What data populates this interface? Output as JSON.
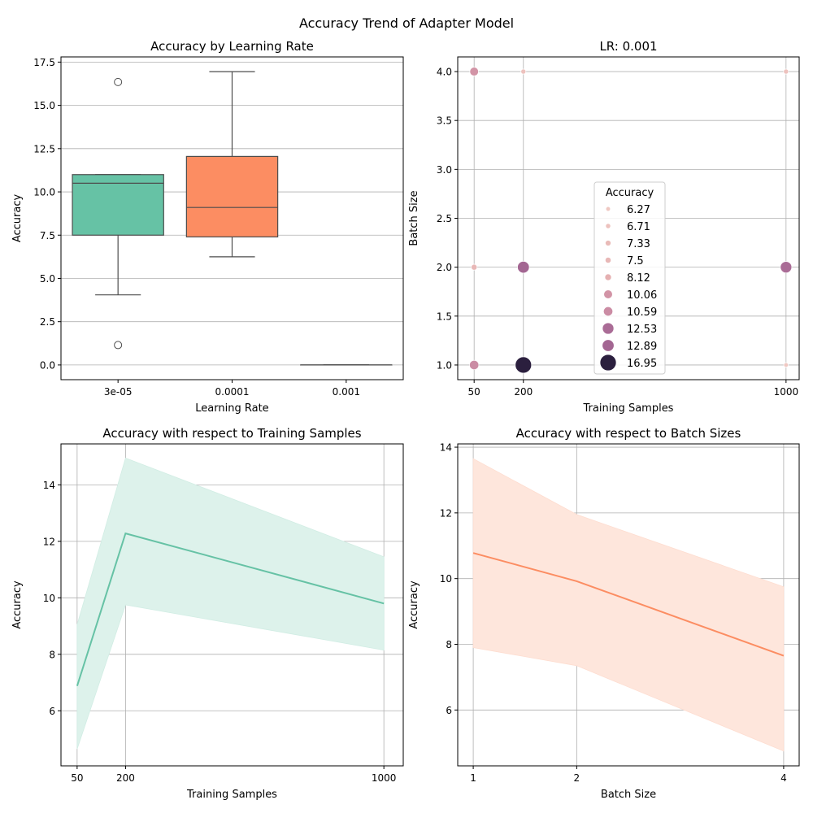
{
  "figure": {
    "title": "Accuracy Trend of Adapter Model"
  },
  "chart_data": [
    {
      "id": "box",
      "type": "box",
      "title": "Accuracy by Learning Rate",
      "xlabel": "Learning Rate",
      "ylabel": "Accuracy",
      "categories": [
        "3e-05",
        "0.0001",
        "0.001"
      ],
      "ylim": [
        -0.85,
        17.8
      ],
      "yticks": [
        0.0,
        2.5,
        5.0,
        7.5,
        10.0,
        12.5,
        15.0,
        17.5
      ],
      "ytick_labels": [
        "0.0",
        "2.5",
        "5.0",
        "7.5",
        "10.0",
        "12.5",
        "15.0",
        "17.5"
      ],
      "grid": "y",
      "boxes": [
        {
          "category": "3e-05",
          "q1": 7.5,
          "median": 10.5,
          "q3": 11.0,
          "whisker_low": 4.05,
          "whisker_high": 11.0,
          "outliers": [
            16.35,
            1.15
          ],
          "color": "#66c2a5"
        },
        {
          "category": "0.0001",
          "q1": 7.4,
          "median": 9.1,
          "q3": 12.05,
          "whisker_low": 6.25,
          "whisker_high": 16.95,
          "outliers": [],
          "color": "#fc8d62"
        },
        {
          "category": "0.001",
          "q1": 0.0,
          "median": 0.0,
          "q3": 0.0,
          "whisker_low": 0.0,
          "whisker_high": 0.0,
          "outliers": [],
          "color": "#8da0cb"
        }
      ]
    },
    {
      "id": "scatter",
      "type": "scatter",
      "title": "LR: 0.001",
      "xlabel": "Training Samples",
      "ylabel": "Batch Size",
      "xlim": [
        0,
        1040
      ],
      "ylim": [
        0.85,
        4.15
      ],
      "xticks": [
        50,
        200,
        1000
      ],
      "xtick_labels": [
        "50",
        "200",
        "1000"
      ],
      "yticks": [
        1.0,
        1.5,
        2.0,
        2.5,
        3.0,
        3.5,
        4.0
      ],
      "ytick_labels": [
        "1.0",
        "1.5",
        "2.0",
        "2.5",
        "3.0",
        "3.5",
        "4.0"
      ],
      "grid": "both",
      "points": [
        {
          "x": 50,
          "y": 4,
          "accuracy": 10.06
        },
        {
          "x": 200,
          "y": 4,
          "accuracy": 6.71
        },
        {
          "x": 1000,
          "y": 4,
          "accuracy": 6.71
        },
        {
          "x": 50,
          "y": 2,
          "accuracy": 7.5
        },
        {
          "x": 200,
          "y": 2,
          "accuracy": 12.89
        },
        {
          "x": 1000,
          "y": 2,
          "accuracy": 12.53
        },
        {
          "x": 50,
          "y": 1,
          "accuracy": 10.59
        },
        {
          "x": 200,
          "y": 1,
          "accuracy": 16.95
        },
        {
          "x": 1000,
          "y": 1,
          "accuracy": 6.27
        }
      ],
      "legend": {
        "title": "Accuracy",
        "placement": "center",
        "entries": [
          "6.27",
          "6.71",
          "7.33",
          "7.5",
          "8.12",
          "10.06",
          "10.59",
          "12.53",
          "12.89",
          "16.95"
        ]
      }
    },
    {
      "id": "line1",
      "type": "line",
      "title": "Accuracy with respect to Training Samples",
      "xlabel": "Training Samples",
      "ylabel": "Accuracy",
      "xlim": [
        0,
        1060
      ],
      "ylim": [
        4.05,
        15.45
      ],
      "xticks": [
        50,
        200,
        1000
      ],
      "xtick_labels": [
        "50",
        "200",
        "1000"
      ],
      "yticks": [
        6,
        8,
        10,
        12,
        14
      ],
      "ytick_labels": [
        "6",
        "8",
        "10",
        "12",
        "14"
      ],
      "grid": "both",
      "color": "#66c2a5",
      "series": [
        {
          "x": [
            50,
            200,
            1000
          ],
          "y": [
            6.88,
            12.28,
            9.8
          ],
          "ci_low": [
            4.65,
            9.75,
            8.15
          ],
          "ci_high": [
            9.05,
            14.95,
            11.45
          ]
        }
      ]
    },
    {
      "id": "line2",
      "type": "line",
      "title": "Accuracy with respect to Batch Sizes",
      "xlabel": "Batch Size",
      "ylabel": "Accuracy",
      "xlim": [
        0.85,
        4.15
      ],
      "ylim": [
        4.3,
        14.1
      ],
      "xticks": [
        1,
        2,
        4
      ],
      "xtick_labels": [
        "1",
        "2",
        "4"
      ],
      "yticks": [
        6,
        8,
        10,
        12,
        14
      ],
      "ytick_labels": [
        "6",
        "8",
        "10",
        "12",
        "14"
      ],
      "grid": "both",
      "color": "#fc8d62",
      "series": [
        {
          "x": [
            1,
            2,
            4
          ],
          "y": [
            10.78,
            9.92,
            7.65
          ],
          "ci_low": [
            7.9,
            7.35,
            4.75
          ],
          "ci_high": [
            13.65,
            11.95,
            9.75
          ]
        }
      ]
    }
  ]
}
